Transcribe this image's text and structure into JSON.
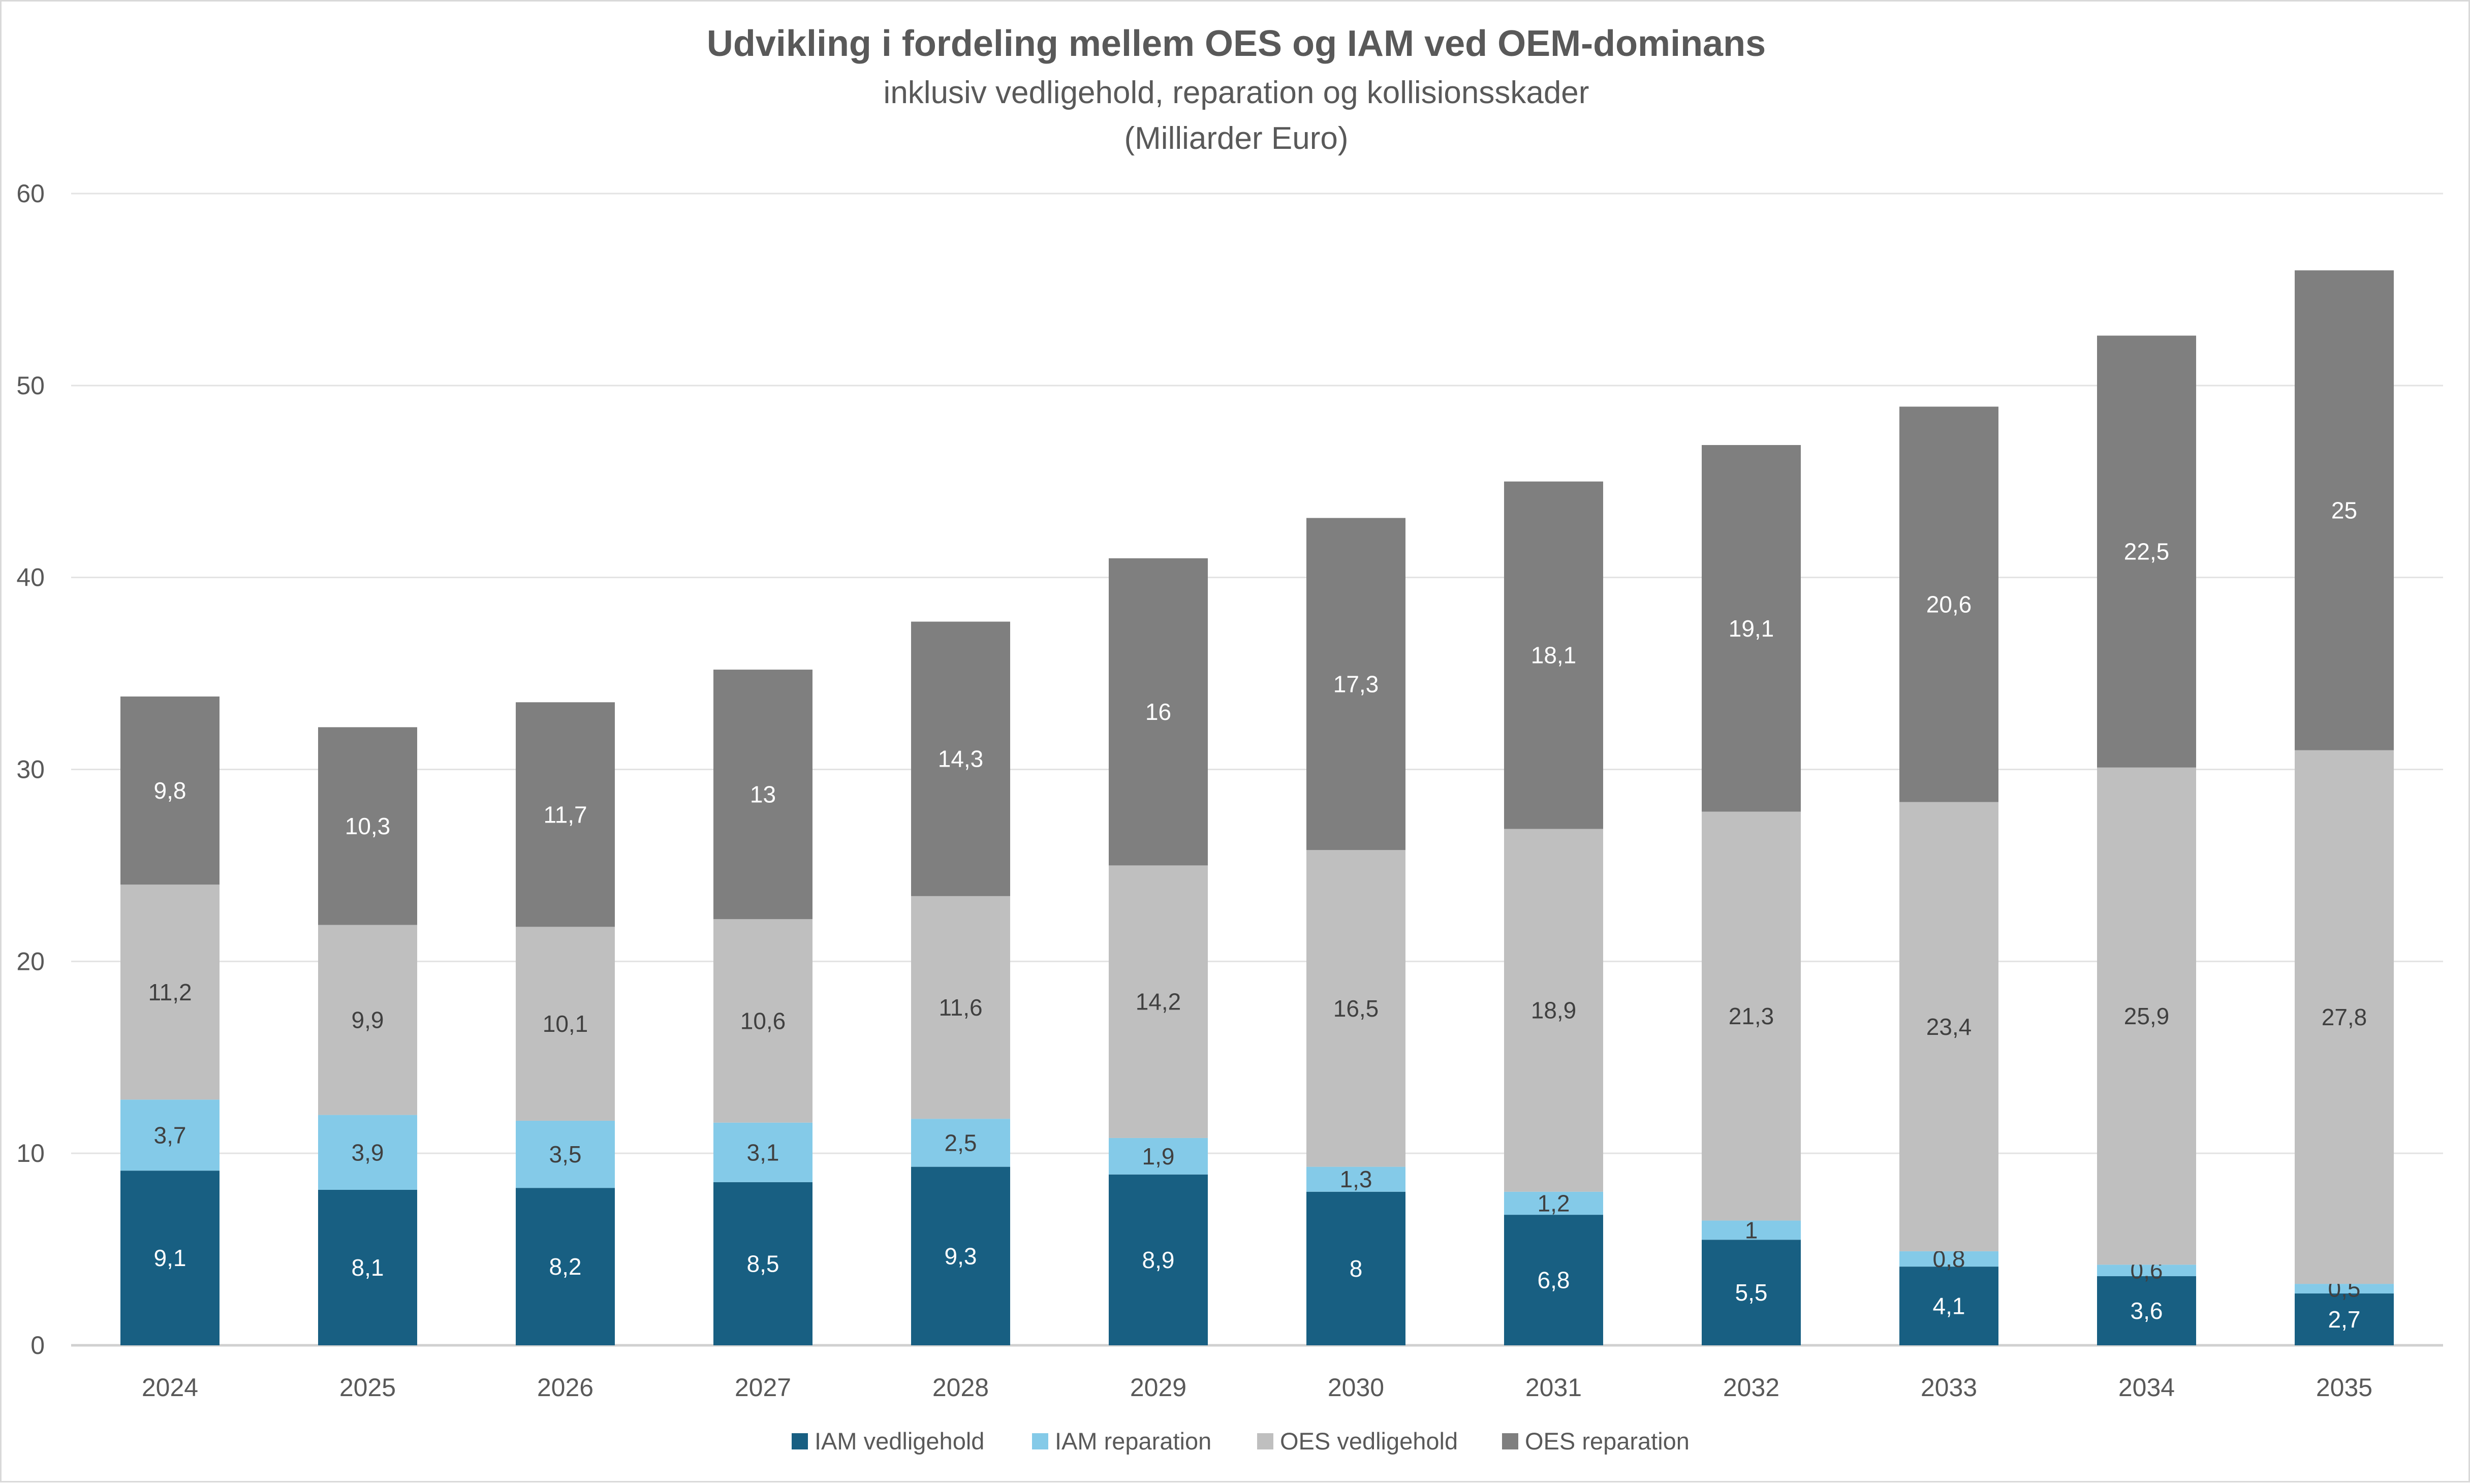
{
  "chart_data": {
    "type": "bar",
    "stacked": true,
    "title": "Udvikling i fordeling mellem OES og IAM ved OEM-dominans",
    "subtitle": "inklusiv vedligehold, reparation og kollisionsskader",
    "unit_line": "(Milliarder Euro)",
    "xlabel": "",
    "ylabel": "",
    "ylim": [
      0,
      60
    ],
    "yticks": [
      0,
      10,
      20,
      30,
      40,
      50,
      60
    ],
    "grid": true,
    "legend_position": "bottom",
    "decimal_separator": ",",
    "categories": [
      "2024",
      "2025",
      "2026",
      "2027",
      "2028",
      "2029",
      "2030",
      "2031",
      "2032",
      "2033",
      "2034",
      "2035"
    ],
    "series": [
      {
        "name": "IAM vedligehold",
        "color": "#185F82",
        "label_color": "#ffffff",
        "values": [
          9.1,
          8.1,
          8.2,
          8.5,
          9.3,
          8.9,
          8,
          6.8,
          5.5,
          4.1,
          3.6,
          2.7
        ]
      },
      {
        "name": "IAM reparation",
        "color": "#84CAE8",
        "label_color": "#404040",
        "values": [
          3.7,
          3.9,
          3.5,
          3.1,
          2.5,
          1.9,
          1.3,
          1.2,
          1,
          0.8,
          0.6,
          0.5
        ]
      },
      {
        "name": "OES vedligehold",
        "color": "#BFBFBF",
        "label_color": "#404040",
        "values": [
          11.2,
          9.9,
          10.1,
          10.6,
          11.6,
          14.2,
          16.5,
          18.9,
          21.3,
          23.4,
          25.9,
          27.8
        ]
      },
      {
        "name": "OES reparation",
        "color": "#7F7F7F",
        "label_color": "#ffffff",
        "values": [
          9.8,
          10.3,
          11.7,
          13,
          14.3,
          16,
          17.3,
          18.1,
          19.1,
          20.6,
          22.5,
          25
        ]
      }
    ]
  }
}
